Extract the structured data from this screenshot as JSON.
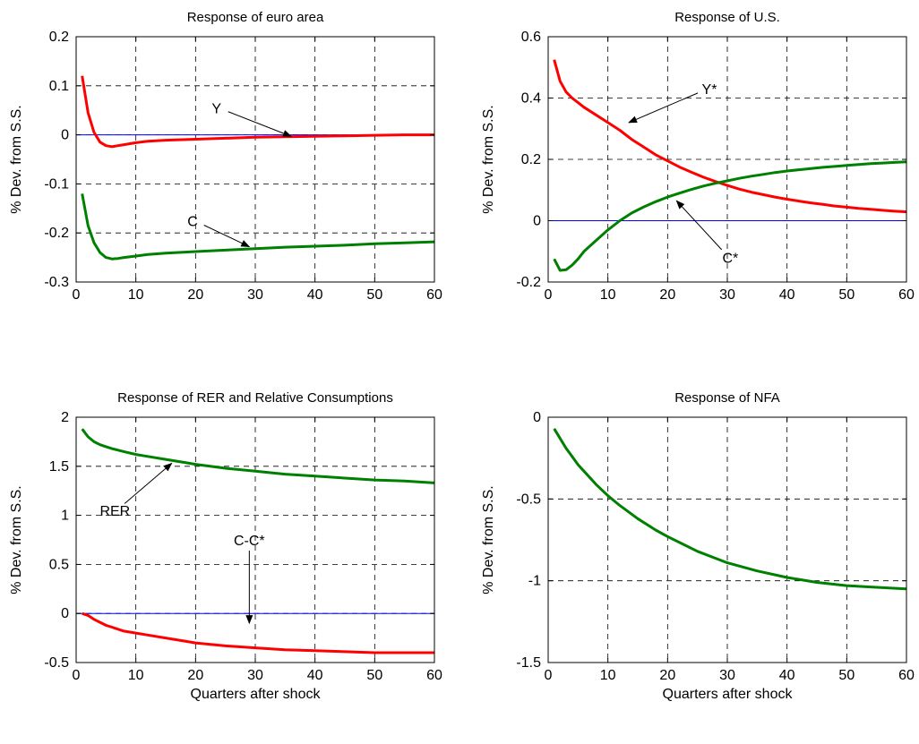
{
  "figure": {
    "colors": {
      "red": "#ff0000",
      "green": "#008000",
      "zero": "#0000ff",
      "grid": "#000000"
    }
  },
  "chart_data": [
    {
      "type": "line",
      "title": "Response of euro area",
      "xlabel": "",
      "ylabel": "% Dev. from S.S.",
      "xlim": [
        0,
        60
      ],
      "ylim": [
        -0.3,
        0.2
      ],
      "xticks": [
        "0",
        "10",
        "20",
        "30",
        "40",
        "50",
        "60"
      ],
      "yticks": [
        "-0.3",
        "-0.2",
        "-0.1",
        "0",
        "0.1",
        "0.2"
      ],
      "grid": true,
      "zero_line": true,
      "series": [
        {
          "name": "Y",
          "color": "red",
          "x": [
            1,
            2,
            3,
            4,
            5,
            6,
            7,
            8,
            10,
            12,
            15,
            20,
            25,
            30,
            35,
            40,
            45,
            50,
            55,
            60
          ],
          "y": [
            0.12,
            0.045,
            0.005,
            -0.015,
            -0.022,
            -0.024,
            -0.022,
            -0.02,
            -0.016,
            -0.013,
            -0.011,
            -0.009,
            -0.007,
            -0.005,
            -0.004,
            -0.003,
            -0.002,
            -0.001,
            0.0,
            0.0
          ]
        },
        {
          "name": "C",
          "color": "green",
          "x": [
            1,
            2,
            3,
            4,
            5,
            6,
            7,
            8,
            10,
            12,
            15,
            20,
            25,
            30,
            35,
            40,
            45,
            50,
            55,
            60
          ],
          "y": [
            -0.12,
            -0.185,
            -0.22,
            -0.24,
            -0.25,
            -0.253,
            -0.252,
            -0.25,
            -0.247,
            -0.244,
            -0.241,
            -0.238,
            -0.235,
            -0.232,
            -0.229,
            -0.227,
            -0.225,
            -0.222,
            -0.22,
            -0.218
          ]
        }
      ],
      "annotations": [
        {
          "text": "Y",
          "label_at": [
            23.5,
            0.055
          ],
          "arrow_to": [
            36,
            -0.003
          ]
        },
        {
          "text": "C",
          "label_at": [
            19.5,
            -0.175
          ],
          "arrow_to": [
            29,
            -0.228
          ]
        }
      ]
    },
    {
      "type": "line",
      "title": "Response of U.S.",
      "xlabel": "",
      "ylabel": "% Dev. from S.S.",
      "xlim": [
        0,
        60
      ],
      "ylim": [
        -0.2,
        0.6
      ],
      "xticks": [
        "0",
        "10",
        "20",
        "30",
        "40",
        "50",
        "60"
      ],
      "yticks": [
        "-0.2",
        "0",
        "0.2",
        "0.4",
        "0.6"
      ],
      "grid": true,
      "zero_line": true,
      "series": [
        {
          "name": "Y*",
          "color": "red",
          "x": [
            1,
            2,
            3,
            4,
            5,
            6,
            8,
            10,
            12,
            14,
            16,
            18,
            20,
            22,
            24,
            26,
            28,
            30,
            32,
            34,
            36,
            38,
            40,
            42,
            44,
            46,
            48,
            50,
            52,
            54,
            56,
            58,
            60
          ],
          "y": [
            0.525,
            0.455,
            0.42,
            0.4,
            0.385,
            0.37,
            0.345,
            0.32,
            0.295,
            0.265,
            0.24,
            0.215,
            0.195,
            0.175,
            0.158,
            0.142,
            0.128,
            0.115,
            0.103,
            0.093,
            0.085,
            0.077,
            0.07,
            0.064,
            0.058,
            0.053,
            0.048,
            0.044,
            0.04,
            0.037,
            0.034,
            0.031,
            0.029
          ]
        },
        {
          "name": "C*",
          "color": "green",
          "x": [
            1,
            2,
            3,
            4,
            5,
            6,
            8,
            10,
            12,
            14,
            16,
            18,
            20,
            22,
            24,
            26,
            28,
            30,
            32,
            34,
            36,
            38,
            40,
            42,
            44,
            46,
            48,
            50,
            52,
            54,
            56,
            58,
            60
          ],
          "y": [
            -0.125,
            -0.162,
            -0.16,
            -0.145,
            -0.125,
            -0.1,
            -0.065,
            -0.03,
            0.0,
            0.025,
            0.045,
            0.062,
            0.077,
            0.09,
            0.102,
            0.113,
            0.122,
            0.13,
            0.138,
            0.145,
            0.151,
            0.157,
            0.162,
            0.166,
            0.17,
            0.174,
            0.177,
            0.18,
            0.183,
            0.186,
            0.188,
            0.19,
            0.192
          ]
        }
      ],
      "annotations": [
        {
          "text": "Y*",
          "label_at": [
            27,
            0.43
          ],
          "arrow_to": [
            13.5,
            0.32
          ]
        },
        {
          "text": "C*",
          "label_at": [
            30.5,
            -0.12
          ],
          "arrow_to": [
            21.5,
            0.065
          ]
        }
      ]
    },
    {
      "type": "line",
      "title": "Response of RER and Relative Consumptions",
      "xlabel": "Quarters after shock",
      "ylabel": "% Dev. from S.S.",
      "xlim": [
        0,
        60
      ],
      "ylim": [
        -0.5,
        2
      ],
      "xticks": [
        "0",
        "10",
        "20",
        "30",
        "40",
        "50",
        "60"
      ],
      "yticks": [
        "-0.5",
        "0",
        "0.5",
        "1",
        "1.5",
        "2"
      ],
      "grid": true,
      "zero_line": true,
      "series": [
        {
          "name": "RER",
          "color": "green",
          "x": [
            1,
            2,
            3,
            4,
            5,
            6,
            8,
            10,
            12,
            15,
            18,
            20,
            25,
            30,
            35,
            40,
            45,
            50,
            55,
            60
          ],
          "y": [
            1.88,
            1.8,
            1.75,
            1.72,
            1.7,
            1.68,
            1.65,
            1.62,
            1.6,
            1.57,
            1.54,
            1.52,
            1.48,
            1.45,
            1.42,
            1.4,
            1.38,
            1.36,
            1.35,
            1.33
          ]
        },
        {
          "name": "C-C*",
          "color": "red",
          "x": [
            1,
            2,
            3,
            4,
            5,
            6,
            8,
            10,
            12,
            15,
            18,
            20,
            25,
            30,
            35,
            40,
            45,
            50,
            55,
            60
          ],
          "y": [
            0.0,
            -0.02,
            -0.06,
            -0.09,
            -0.12,
            -0.14,
            -0.18,
            -0.2,
            -0.22,
            -0.25,
            -0.28,
            -0.3,
            -0.33,
            -0.35,
            -0.37,
            -0.38,
            -0.39,
            -0.4,
            -0.4,
            -0.4
          ]
        }
      ],
      "annotations": [
        {
          "text": "RER",
          "label_at": [
            6.5,
            1.05
          ],
          "arrow_to": [
            16,
            1.53
          ]
        },
        {
          "text": "C-C*",
          "label_at": [
            29,
            0.75
          ],
          "arrow_to": [
            29,
            -0.1
          ]
        }
      ]
    },
    {
      "type": "line",
      "title": "Response of NFA",
      "xlabel": "Quarters after shock",
      "ylabel": "% Dev. from S.S.",
      "xlim": [
        0,
        60
      ],
      "ylim": [
        -1.5,
        0
      ],
      "xticks": [
        "0",
        "10",
        "20",
        "30",
        "40",
        "50",
        "60"
      ],
      "yticks": [
        "-1.5",
        "-1",
        "-0.5",
        "0"
      ],
      "grid": true,
      "zero_line": true,
      "series": [
        {
          "name": "NFA",
          "color": "green",
          "x": [
            1,
            2,
            3,
            4,
            5,
            6,
            8,
            10,
            12,
            15,
            18,
            20,
            25,
            30,
            35,
            40,
            45,
            50,
            55,
            60
          ],
          "y": [
            -0.07,
            -0.13,
            -0.19,
            -0.24,
            -0.29,
            -0.33,
            -0.41,
            -0.48,
            -0.54,
            -0.62,
            -0.69,
            -0.73,
            -0.82,
            -0.89,
            -0.94,
            -0.98,
            -1.01,
            -1.03,
            -1.04,
            -1.05
          ]
        }
      ],
      "annotations": []
    }
  ]
}
